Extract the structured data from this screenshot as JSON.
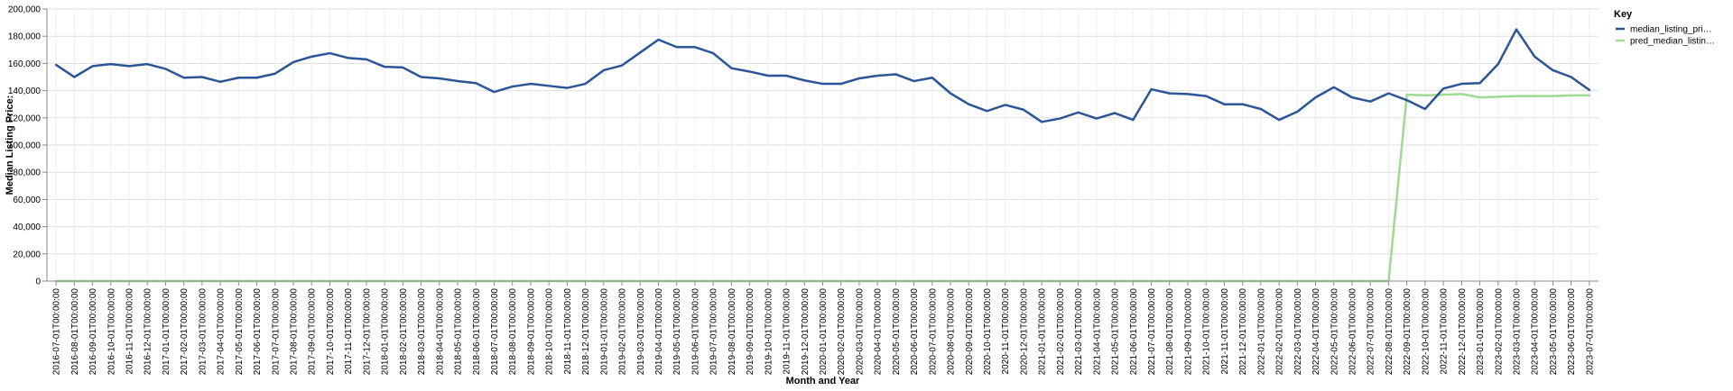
{
  "chart_data": {
    "type": "line",
    "xlabel": "Month and Year",
    "ylabel": "Median Listing Price:",
    "ylim": [
      0,
      200000
    ],
    "yticks": [
      0,
      20000,
      40000,
      60000,
      80000,
      100000,
      120000,
      140000,
      160000,
      180000,
      200000
    ],
    "ytick_labels": [
      "0",
      "20,000",
      "40,000",
      "60,000",
      "80,000",
      "100,000",
      "120,000",
      "140,000",
      "160,000",
      "180,000",
      "200,000"
    ],
    "grid": true,
    "legend": {
      "title": "Key",
      "placement": "top-right"
    },
    "x": [
      "2016-07-01T00:00:00",
      "2016-08-01T00:00:00",
      "2016-09-01T00:00:00",
      "2016-10-01T00:00:00",
      "2016-11-01T00:00:00",
      "2016-12-01T00:00:00",
      "2017-01-01T00:00:00",
      "2017-02-01T00:00:00",
      "2017-03-01T00:00:00",
      "2017-04-01T00:00:00",
      "2017-05-01T00:00:00",
      "2017-06-01T00:00:00",
      "2017-07-01T00:00:00",
      "2017-08-01T00:00:00",
      "2017-09-01T00:00:00",
      "2017-10-01T00:00:00",
      "2017-11-01T00:00:00",
      "2017-12-01T00:00:00",
      "2018-01-01T00:00:00",
      "2018-02-01T00:00:00",
      "2018-03-01T00:00:00",
      "2018-04-01T00:00:00",
      "2018-05-01T00:00:00",
      "2018-06-01T00:00:00",
      "2018-07-01T00:00:00",
      "2018-08-01T00:00:00",
      "2018-09-01T00:00:00",
      "2018-10-01T00:00:00",
      "2018-11-01T00:00:00",
      "2018-12-01T00:00:00",
      "2019-01-01T00:00:00",
      "2019-02-01T00:00:00",
      "2019-03-01T00:00:00",
      "2019-04-01T00:00:00",
      "2019-05-01T00:00:00",
      "2019-06-01T00:00:00",
      "2019-07-01T00:00:00",
      "2019-08-01T00:00:00",
      "2019-09-01T00:00:00",
      "2019-10-01T00:00:00",
      "2019-11-01T00:00:00",
      "2019-12-01T00:00:00",
      "2020-01-01T00:00:00",
      "2020-02-01T00:00:00",
      "2020-03-01T00:00:00",
      "2020-04-01T00:00:00",
      "2020-05-01T00:00:00",
      "2020-06-01T00:00:00",
      "2020-07-01T00:00:00",
      "2020-08-01T00:00:00",
      "2020-09-01T00:00:00",
      "2020-10-01T00:00:00",
      "2020-11-01T00:00:00",
      "2020-12-01T00:00:00",
      "2021-01-01T00:00:00",
      "2021-02-01T00:00:00",
      "2021-03-01T00:00:00",
      "2021-04-01T00:00:00",
      "2021-05-01T00:00:00",
      "2021-06-01T00:00:00",
      "2021-07-01T00:00:00",
      "2021-08-01T00:00:00",
      "2021-09-01T00:00:00",
      "2021-10-01T00:00:00",
      "2021-11-01T00:00:00",
      "2021-12-01T00:00:00",
      "2022-01-01T00:00:00",
      "2022-02-01T00:00:00",
      "2022-03-01T00:00:00",
      "2022-04-01T00:00:00",
      "2022-05-01T00:00:00",
      "2022-06-01T00:00:00",
      "2022-07-01T00:00:00",
      "2022-08-01T00:00:00",
      "2022-09-01T00:00:00",
      "2022-10-01T00:00:00",
      "2022-11-01T00:00:00",
      "2022-12-01T00:00:00",
      "2023-01-01T00:00:00",
      "2023-02-01T00:00:00",
      "2023-03-01T00:00:00",
      "2023-04-01T00:00:00",
      "2023-05-01T00:00:00",
      "2023-06-01T00:00:00",
      "2023-07-01T00:00:00"
    ],
    "series": [
      {
        "name": "median_listing_pri…",
        "color": "#2b5597",
        "values": [
          159000,
          150000,
          158000,
          159500,
          158000,
          159500,
          156000,
          149500,
          150000,
          146500,
          149500,
          149500,
          152500,
          161000,
          165000,
          167500,
          164000,
          163000,
          157500,
          157000,
          150000,
          149000,
          147000,
          145500,
          139000,
          143000,
          145000,
          143500,
          142000,
          145000,
          155000,
          158500,
          168000,
          177500,
          172000,
          172000,
          167500,
          156500,
          154000,
          151000,
          151000,
          147500,
          145000,
          145000,
          149000,
          151000,
          152000,
          147000,
          149500,
          138000,
          130000,
          125000,
          129500,
          126000,
          117000,
          119500,
          124000,
          119500,
          123500,
          118500,
          141000,
          138000,
          137500,
          136000,
          130000,
          130000,
          126500,
          118500,
          124500,
          135000,
          142500,
          135000,
          132000,
          138000,
          133000,
          126500,
          141500,
          145000,
          145500,
          159500,
          185000,
          165000,
          155000,
          150000,
          140500
        ]
      },
      {
        "name": "pred_median_listin…",
        "color": "#9edb91",
        "values": [
          0,
          0,
          0,
          0,
          0,
          0,
          0,
          0,
          0,
          0,
          0,
          0,
          0,
          0,
          0,
          0,
          0,
          0,
          0,
          0,
          0,
          0,
          0,
          0,
          0,
          0,
          0,
          0,
          0,
          0,
          0,
          0,
          0,
          0,
          0,
          0,
          0,
          0,
          0,
          0,
          0,
          0,
          0,
          0,
          0,
          0,
          0,
          0,
          0,
          0,
          0,
          0,
          0,
          0,
          0,
          0,
          0,
          0,
          0,
          0,
          0,
          0,
          0,
          0,
          0,
          0,
          0,
          0,
          0,
          0,
          0,
          0,
          0,
          0,
          137000,
          136500,
          137000,
          137500,
          135000,
          135500,
          136000,
          136000,
          136000,
          136500,
          136500
        ]
      }
    ]
  }
}
